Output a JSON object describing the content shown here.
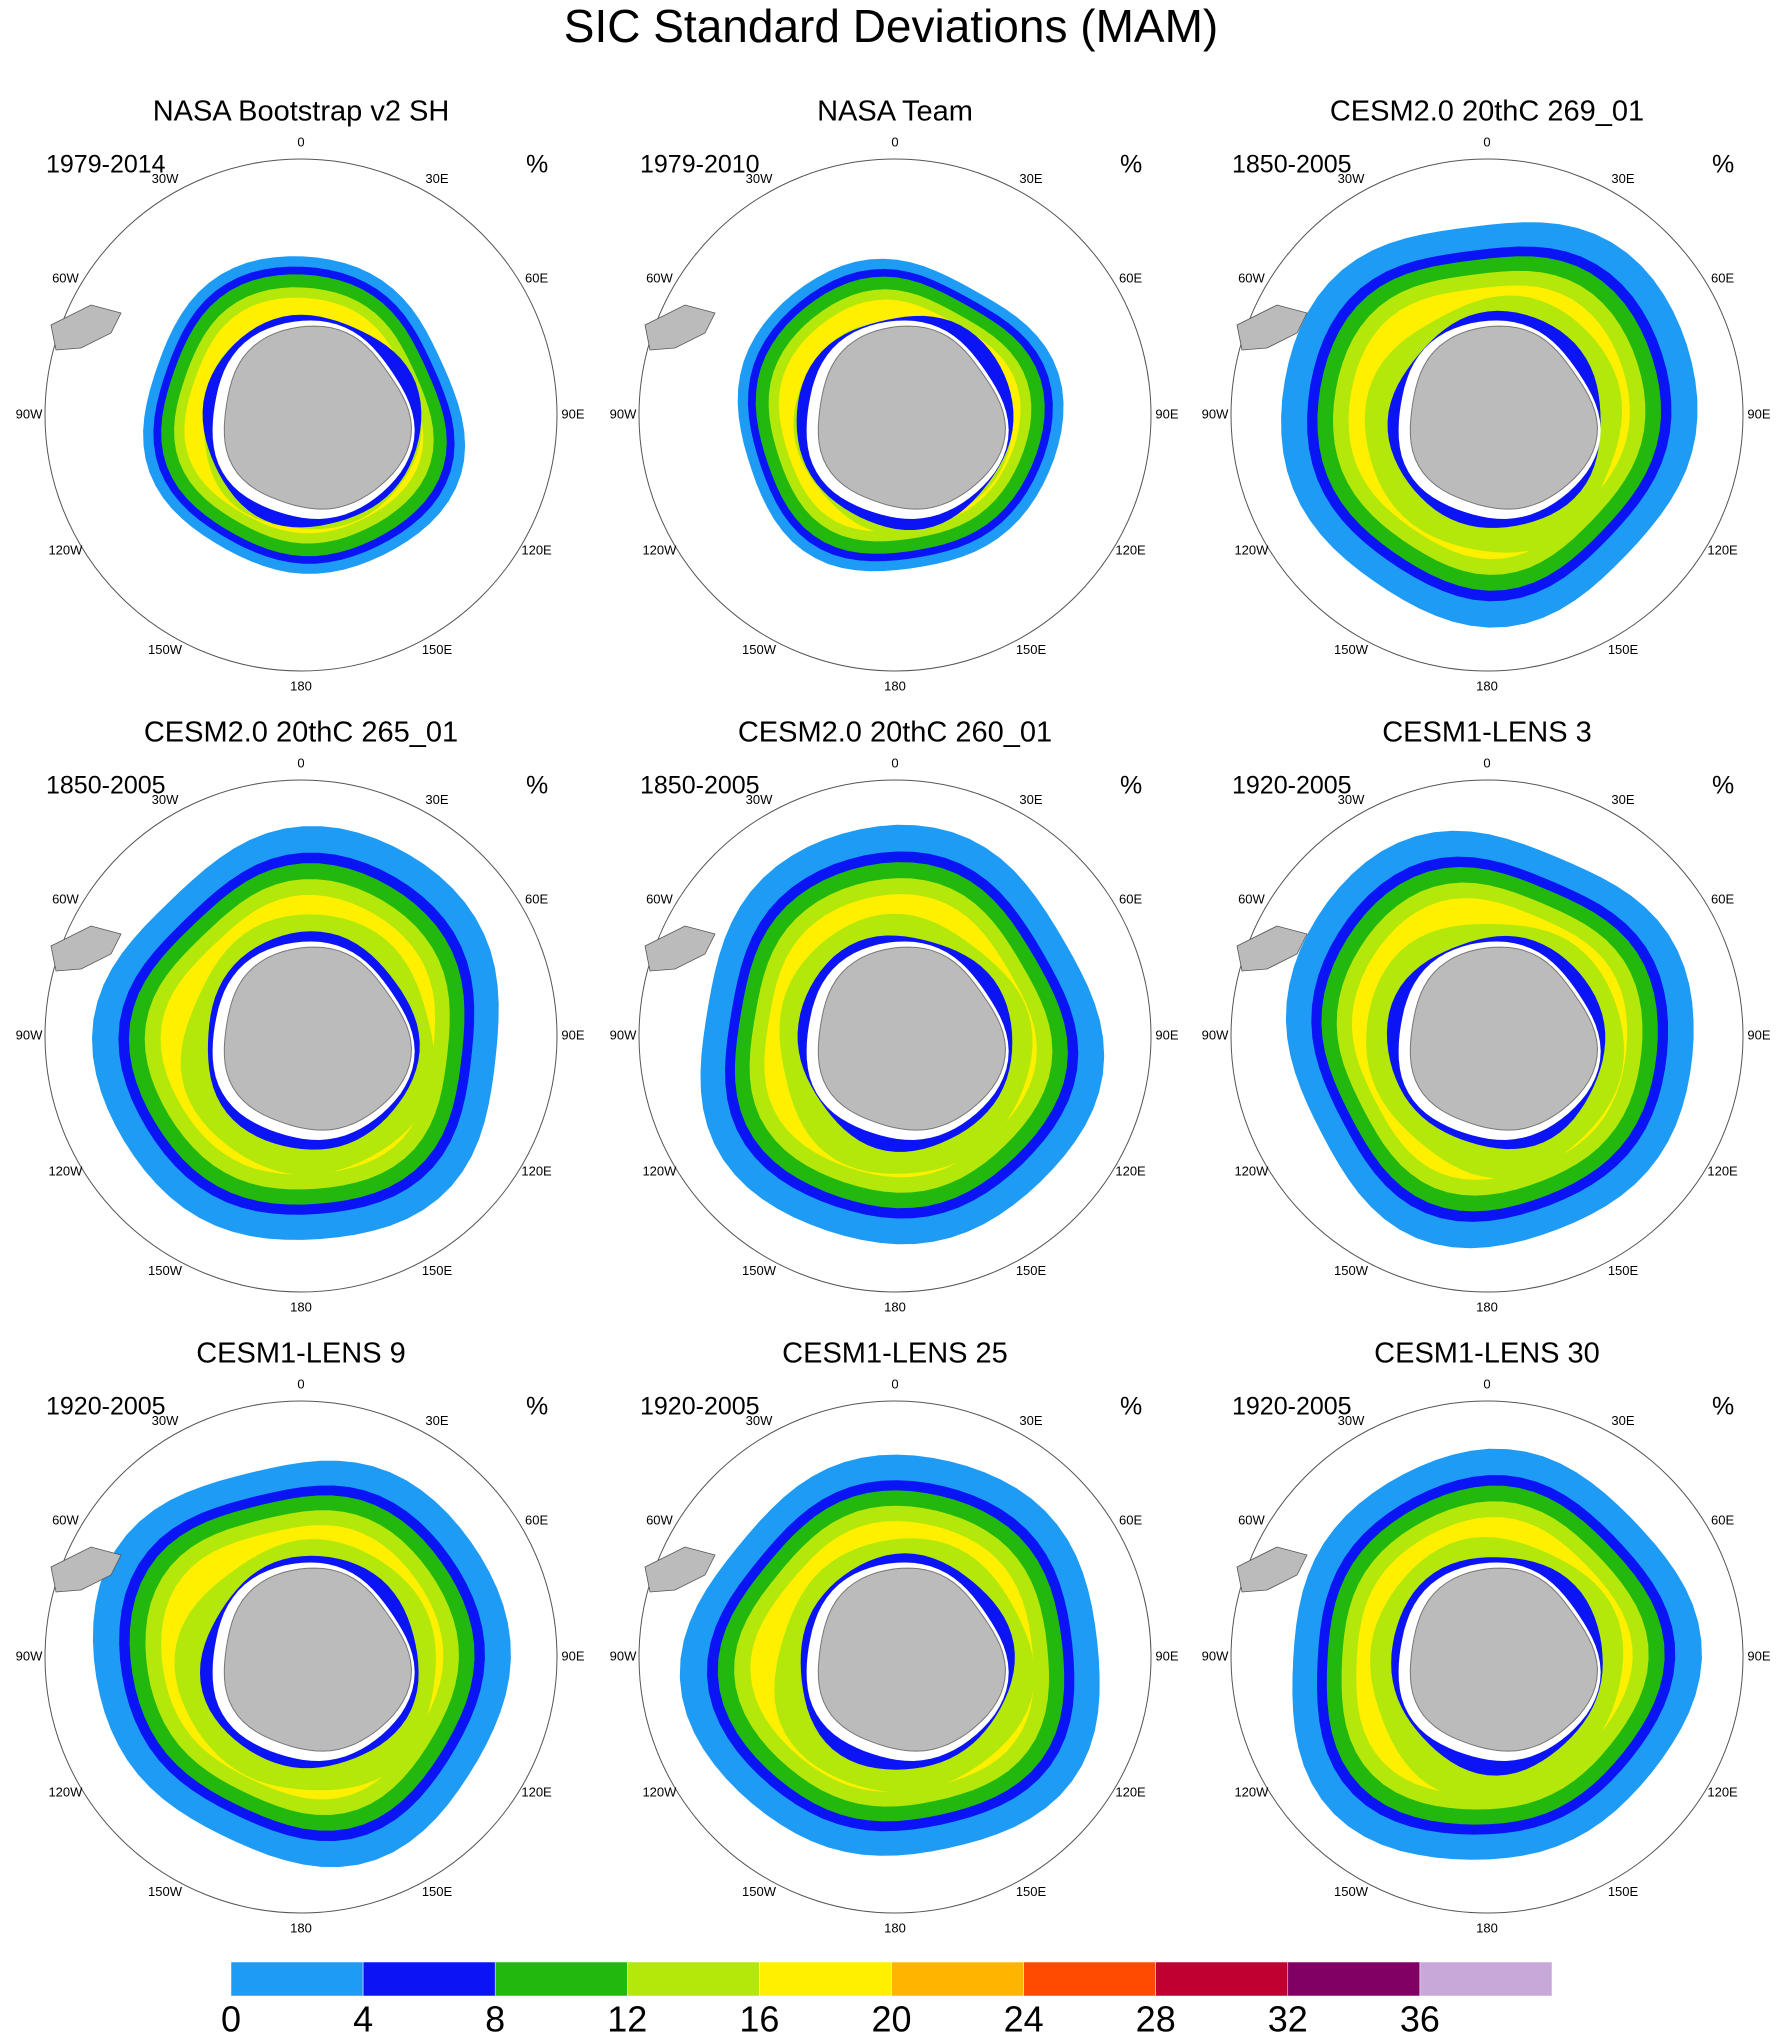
{
  "title": "SIC Standard Deviations (MAM)",
  "panels": [
    {
      "title": "NASA Bootstrap v2 SH",
      "period": "1979-2014",
      "unit": "%"
    },
    {
      "title": "NASA Team",
      "period": "1979-2010",
      "unit": "%"
    },
    {
      "title": "CESM2.0 20thC 269_01",
      "period": "1850-2005",
      "unit": "%"
    },
    {
      "title": "CESM2.0 20thC 265_01",
      "period": "1850-2005",
      "unit": "%"
    },
    {
      "title": "CESM2.0 20thC 260_01",
      "period": "1850-2005",
      "unit": "%"
    },
    {
      "title": "CESM1-LENS 3",
      "period": "1920-2005",
      "unit": "%"
    },
    {
      "title": "CESM1-LENS 9",
      "period": "1920-2005",
      "unit": "%"
    },
    {
      "title": "CESM1-LENS 25",
      "period": "1920-2005",
      "unit": "%"
    },
    {
      "title": "CESM1-LENS 30",
      "period": "1920-2005",
      "unit": "%"
    }
  ],
  "longitude_labels": [
    "0",
    "30E",
    "60E",
    "90E",
    "120E",
    "150E",
    "180",
    "150W",
    "120W",
    "90W",
    "60W",
    "30W"
  ],
  "colorbar": {
    "colors": [
      "#1e9bf5",
      "#0a14f5",
      "#22b80e",
      "#b4e80a",
      "#fff000",
      "#ffb400",
      "#ff4b00",
      "#c00030",
      "#800064",
      "#c8a8d8"
    ],
    "ticks": [
      0,
      4,
      8,
      12,
      16,
      20,
      24,
      28,
      32,
      36
    ]
  }
}
